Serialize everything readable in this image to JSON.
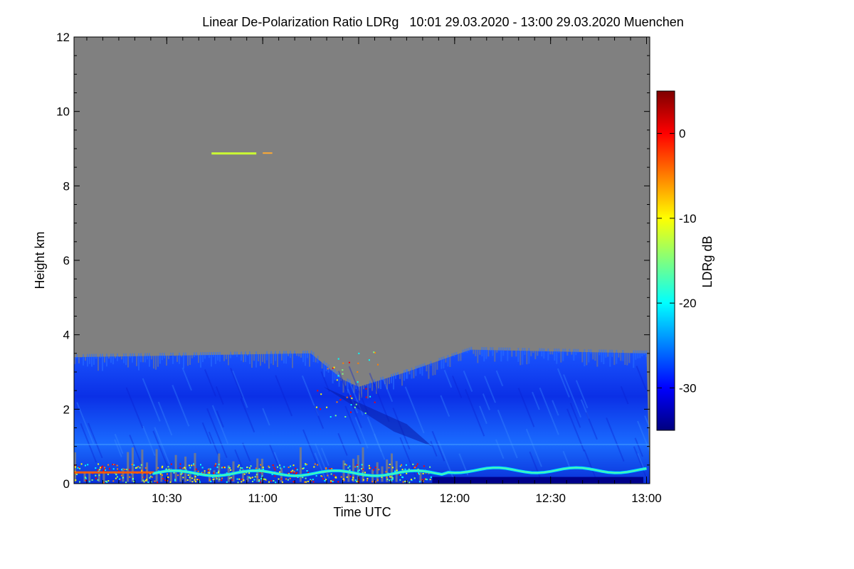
{
  "chart_data": {
    "type": "heatmap",
    "title": "Linear De-Polarization Ratio LDRg   10:01 29.03.2020 - 13:00 29.03.2020 Muenchen",
    "xlabel": "Time UTC",
    "ylabel": "Height km",
    "x_range": [
      "10:01",
      "13:00"
    ],
    "x_ticks": [
      "10:30",
      "11:00",
      "11:30",
      "12:00",
      "12:30",
      "13:00"
    ],
    "x_tick_minutes": [
      29,
      59,
      89,
      119,
      149,
      179
    ],
    "x_span_minutes": 180,
    "ylim": [
      0,
      12
    ],
    "y_ticks": [
      0,
      2,
      4,
      6,
      8,
      10,
      12
    ],
    "colorbar": {
      "label": "LDRg dB",
      "range": [
        -35,
        5
      ],
      "ticks": [
        0,
        -10,
        -20,
        -30
      ],
      "colors": [
        "#00007f",
        "#0000ff",
        "#007fff",
        "#00ffff",
        "#7fff7f",
        "#ffff00",
        "#ff7f00",
        "#ff0000",
        "#7f0000"
      ]
    },
    "no_signal_color": "#808080",
    "approx_layer_top_km": [
      {
        "time": "10:01",
        "km": 3.4
      },
      {
        "time": "11:15",
        "km": 3.5
      },
      {
        "time": "11:25",
        "km": 2.8
      },
      {
        "time": "11:30",
        "km": 2.6
      },
      {
        "time": "11:45",
        "km": 3.0
      },
      {
        "time": "12:05",
        "km": 3.6
      },
      {
        "time": "13:00",
        "km": 3.5
      }
    ]
  }
}
